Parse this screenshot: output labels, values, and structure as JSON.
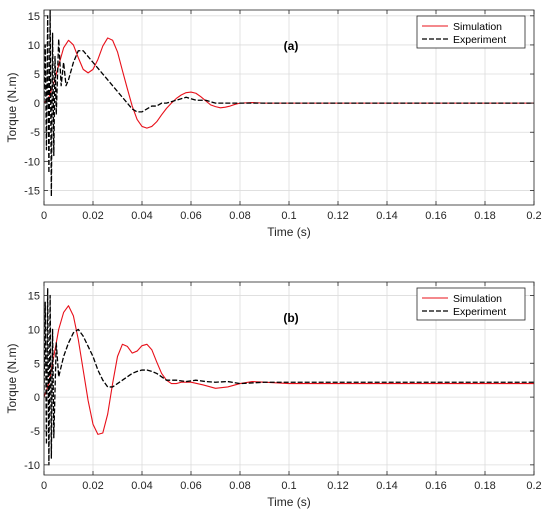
{
  "chart_data": [
    {
      "type": "line",
      "panel_label": "(a)",
      "xlabel": "Time (s)",
      "ylabel": "Torque (N.m)",
      "xlim": [
        0,
        0.2
      ],
      "ylim": [
        -17.5,
        16
      ],
      "xticks": [
        0,
        0.02,
        0.04,
        0.06,
        0.08,
        0.1,
        0.12,
        0.14,
        0.16,
        0.18,
        0.2
      ],
      "xtick_labels": [
        "0",
        "0.02",
        "0.04",
        "0.06",
        "0.08",
        "0.1",
        "0.12",
        "0.14",
        "0.16",
        "0.18",
        "0.2"
      ],
      "yticks": [
        -15,
        -10,
        -5,
        0,
        5,
        10,
        15
      ],
      "ytick_labels": [
        "-15",
        "-10",
        "-5",
        "0",
        "5",
        "10",
        "15"
      ],
      "grid": true,
      "legend_position": "top-right",
      "series": [
        {
          "name": "Simulation",
          "color": "#e8101a",
          "style": "solid",
          "x": [
            0,
            0.002,
            0.004,
            0.006,
            0.008,
            0.01,
            0.012,
            0.014,
            0.016,
            0.018,
            0.02,
            0.022,
            0.024,
            0.026,
            0.028,
            0.03,
            0.032,
            0.034,
            0.036,
            0.038,
            0.04,
            0.042,
            0.044,
            0.046,
            0.048,
            0.05,
            0.052,
            0.054,
            0.056,
            0.058,
            0.06,
            0.062,
            0.064,
            0.066,
            0.068,
            0.07,
            0.072,
            0.074,
            0.076,
            0.078,
            0.08,
            0.085,
            0.09,
            0.1,
            0.12,
            0.14,
            0.16,
            0.18,
            0.2
          ],
          "y": [
            0,
            1,
            3.5,
            6.5,
            9.5,
            10.8,
            10,
            7.8,
            5.8,
            5.2,
            5.8,
            7.5,
            9.8,
            11.2,
            10.8,
            8.8,
            5.6,
            2.5,
            -0.5,
            -2.8,
            -4,
            -4.3,
            -4,
            -3.2,
            -2,
            -0.9,
            0,
            0.8,
            1.4,
            1.8,
            1.9,
            1.7,
            1.1,
            0.4,
            -0.3,
            -0.6,
            -0.8,
            -0.7,
            -0.5,
            -0.2,
            0,
            0.1,
            0,
            0,
            0,
            0,
            0,
            0,
            0
          ]
        },
        {
          "name": "Experiment",
          "color": "#000000",
          "style": "dashed",
          "x": [
            0,
            0.0005,
            0.001,
            0.0015,
            0.002,
            0.0025,
            0.003,
            0.0035,
            0.004,
            0.0045,
            0.005,
            0.006,
            0.007,
            0.008,
            0.009,
            0.01,
            0.012,
            0.014,
            0.016,
            0.018,
            0.02,
            0.022,
            0.024,
            0.026,
            0.028,
            0.03,
            0.032,
            0.034,
            0.036,
            0.038,
            0.04,
            0.042,
            0.044,
            0.046,
            0.048,
            0.05,
            0.054,
            0.058,
            0.062,
            0.066,
            0.07,
            0.075,
            0.08,
            0.09,
            0.1,
            0.12,
            0.14,
            0.16,
            0.18,
            0.2
          ],
          "y": [
            0,
            10,
            -8,
            15,
            -12,
            16,
            -16,
            12,
            -9,
            8,
            -2,
            11,
            3,
            7,
            3,
            4,
            7,
            9,
            9,
            8,
            7,
            6,
            5,
            4,
            3,
            2,
            1,
            0,
            -1,
            -1.5,
            -1.5,
            -1,
            -0.5,
            -0.5,
            0,
            0,
            0.5,
            1,
            0.5,
            0.5,
            0,
            0,
            0,
            0,
            0,
            0,
            0,
            0,
            0,
            0
          ]
        }
      ]
    },
    {
      "type": "line",
      "panel_label": "(b)",
      "xlabel": "Time (s)",
      "ylabel": "Torque (N.m)",
      "xlim": [
        0,
        0.2
      ],
      "ylim": [
        -11.5,
        17
      ],
      "xticks": [
        0,
        0.02,
        0.04,
        0.06,
        0.08,
        0.1,
        0.12,
        0.14,
        0.16,
        0.18,
        0.2
      ],
      "xtick_labels": [
        "0",
        "0.02",
        "0.04",
        "0.06",
        "0.08",
        "0.1",
        "0.12",
        "0.14",
        "0.16",
        "0.18",
        "0.2"
      ],
      "yticks": [
        -10,
        -5,
        0,
        5,
        10,
        15
      ],
      "ytick_labels": [
        "-10",
        "-5",
        "0",
        "5",
        "10",
        "15"
      ],
      "grid": true,
      "legend_position": "top-right",
      "series": [
        {
          "name": "Simulation",
          "color": "#e8101a",
          "style": "solid",
          "x": [
            0,
            0.002,
            0.004,
            0.006,
            0.008,
            0.01,
            0.012,
            0.014,
            0.016,
            0.018,
            0.02,
            0.022,
            0.024,
            0.026,
            0.028,
            0.03,
            0.032,
            0.034,
            0.036,
            0.038,
            0.04,
            0.042,
            0.044,
            0.046,
            0.048,
            0.05,
            0.052,
            0.054,
            0.056,
            0.06,
            0.065,
            0.07,
            0.075,
            0.08,
            0.085,
            0.09,
            0.1,
            0.12,
            0.14,
            0.16,
            0.18,
            0.2
          ],
          "y": [
            0,
            2,
            6,
            10,
            12.5,
            13.5,
            12,
            8.5,
            4,
            -0.5,
            -4,
            -5.5,
            -5.3,
            -2.5,
            2,
            6,
            7.8,
            7.5,
            6.5,
            6.8,
            7.6,
            7.8,
            7,
            5.2,
            3.5,
            2.5,
            2,
            2,
            2.2,
            2.2,
            1.8,
            1.3,
            1.5,
            2,
            2.3,
            2.2,
            2,
            2,
            2,
            2,
            2,
            2
          ]
        },
        {
          "name": "Experiment",
          "color": "#000000",
          "style": "dashed",
          "x": [
            0,
            0.0005,
            0.001,
            0.0015,
            0.002,
            0.0025,
            0.003,
            0.0035,
            0.004,
            0.005,
            0.006,
            0.008,
            0.01,
            0.012,
            0.014,
            0.016,
            0.018,
            0.02,
            0.022,
            0.024,
            0.026,
            0.028,
            0.03,
            0.032,
            0.034,
            0.036,
            0.038,
            0.04,
            0.042,
            0.044,
            0.046,
            0.048,
            0.05,
            0.054,
            0.058,
            0.062,
            0.066,
            0.07,
            0.075,
            0.08,
            0.09,
            0.1,
            0.12,
            0.14,
            0.16,
            0.18,
            0.2
          ],
          "y": [
            0,
            14,
            -7,
            16,
            -10,
            15,
            -9,
            10,
            -6,
            8,
            3,
            6,
            8,
            9.5,
            10,
            9,
            7.5,
            6,
            4,
            2.5,
            1.5,
            1.5,
            2,
            2.5,
            3,
            3.5,
            3.8,
            4,
            4,
            3.8,
            3.5,
            3,
            2.5,
            2.5,
            2.3,
            2.5,
            2.3,
            2.2,
            2.3,
            2,
            2.2,
            2.2,
            2.2,
            2.2,
            2.2,
            2.2,
            2.2
          ]
        }
      ]
    }
  ]
}
